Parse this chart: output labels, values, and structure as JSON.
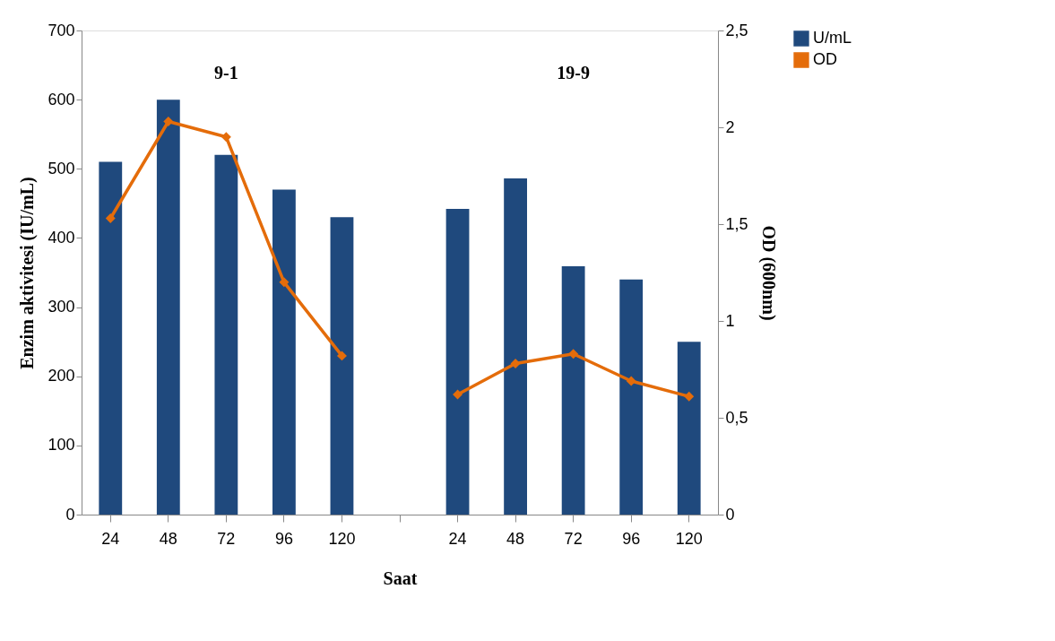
{
  "chart_data": {
    "type": "bar",
    "categories": [
      "24",
      "48",
      "72",
      "96",
      "120",
      null,
      "24",
      "48",
      "72",
      "96",
      "120"
    ],
    "xlabel": "Saat",
    "ylabel": "Enzim aktivitesi (IU/mL)",
    "y2label": "OD (600nm)",
    "series": [
      {
        "name": "U/mL",
        "color": "#1f497d",
        "values": [
          510,
          600,
          520,
          470,
          430,
          null,
          442,
          486,
          359,
          340,
          250
        ]
      },
      {
        "name": "OD",
        "type": "line",
        "axis": "y2",
        "color": "#e46c0a",
        "marker": "diamond",
        "values": [
          1.53,
          2.03,
          1.95,
          1.2,
          0.82,
          null,
          0.62,
          0.78,
          0.83,
          0.69,
          0.61
        ]
      }
    ],
    "ylim": [
      0,
      700
    ],
    "yticks": [
      0,
      100,
      200,
      300,
      400,
      500,
      600,
      700
    ],
    "y2lim": [
      0,
      2.5
    ],
    "y2ticks": [
      0,
      {
        "value": 0.5,
        "label": "0,5"
      },
      1,
      {
        "value": 1.5,
        "label": "1,5"
      },
      2,
      {
        "value": 2.5,
        "label": "2,5"
      }
    ],
    "annotations": [
      "9-1",
      "19-9"
    ],
    "grid": false,
    "legend": "right"
  }
}
